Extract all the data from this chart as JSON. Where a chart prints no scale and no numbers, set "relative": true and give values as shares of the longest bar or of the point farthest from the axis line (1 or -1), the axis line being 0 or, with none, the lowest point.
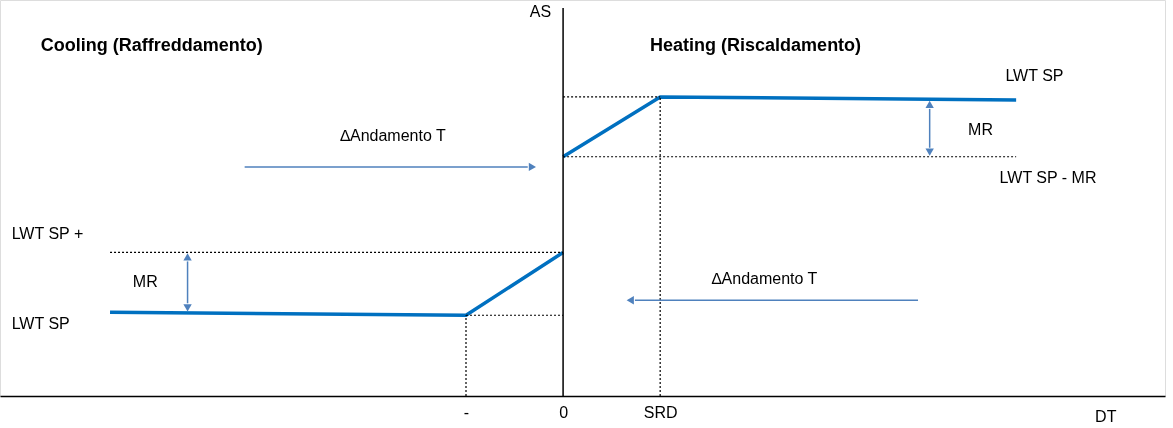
{
  "chart_data": {
    "type": "line",
    "relative": true,
    "ylabel": "AS",
    "categories": [
      null,
      null,
      null,
      null,
      null,
      null,
      null,
      null,
      null,
      null,
      null,
      "-",
      null,
      null,
      "0",
      null,
      null,
      "SRD",
      null,
      null,
      null,
      null,
      null,
      null,
      null,
      null,
      null,
      null,
      null
    ],
    "marker": "none",
    "line_style": "solid",
    "series": [
      {
        "color": "#0070c0",
        "values": [
          null,
          null,
          null,
          null,
          null,
          null,
          null,
          null,
          null,
          null,
          null,
          null,
          null,
          null,
          0.8,
          null,
          null,
          1.0,
          null,
          null,
          null,
          null,
          null,
          null,
          null,
          null,
          null,
          null,
          0.99
        ]
      },
      {
        "color": "#0070c0",
        "values": [
          0.28,
          null,
          null,
          null,
          null,
          null,
          null,
          null,
          null,
          null,
          null,
          0.27,
          null,
          null,
          0.48,
          null,
          null,
          null,
          null,
          null,
          null,
          null,
          null,
          null,
          null,
          null,
          null,
          null,
          null
        ]
      },
      {
        "color": "#000000",
        "line_style": "dotted",
        "values": [
          null,
          null,
          null,
          null,
          null,
          null,
          null,
          null,
          null,
          null,
          null,
          null,
          null,
          null,
          1.0,
          null,
          null,
          1.0,
          null,
          null,
          null,
          null,
          null,
          null,
          null,
          null,
          null,
          null,
          null
        ]
      },
      {
        "color": "#000000",
        "line_style": "dotted",
        "values": [
          null,
          null,
          null,
          null,
          null,
          null,
          null,
          null,
          null,
          null,
          null,
          null,
          null,
          null,
          0.8,
          null,
          null,
          null,
          null,
          null,
          null,
          null,
          null,
          null,
          null,
          null,
          null,
          null,
          0.8
        ]
      },
      {
        "color": "#000000",
        "line_style": "dotted",
        "values": [
          0.48,
          null,
          null,
          null,
          null,
          null,
          null,
          null,
          null,
          null,
          null,
          null,
          null,
          null,
          0.48,
          null,
          null,
          null,
          null,
          null,
          null,
          null,
          null,
          null,
          null,
          null,
          null,
          null,
          null
        ]
      },
      {
        "color": "#000000",
        "line_style": "dotted",
        "values": [
          null,
          null,
          null,
          null,
          null,
          null,
          null,
          null,
          null,
          null,
          null,
          0.27,
          null,
          null,
          0.27,
          null,
          null,
          null,
          null,
          null,
          null,
          null,
          null,
          null,
          null,
          null,
          null,
          null,
          null
        ]
      }
    ],
    "ref_lines": [
      {
        "axis": "x",
        "value": "-",
        "line_style": "dotted",
        "color": "#000000"
      },
      {
        "axis": "x",
        "value": "SRD",
        "line_style": "dotted",
        "color": "#000000"
      }
    ],
    "annotations": [
      "Cooling (Raffreddamento)",
      "Heating (Riscaldamento)",
      "LWT SP",
      "MR",
      "LWT   SP   - MR",
      "∆Andamento T",
      "LWT   SP   +",
      "MR",
      "LWT SP",
      "∆Andamento T",
      "DT"
    ]
  }
}
